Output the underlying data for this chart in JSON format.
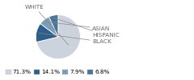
{
  "values": [
    71.3,
    14.1,
    7.9,
    6.8
  ],
  "colors": [
    "#cdd3dc",
    "#2c5f8a",
    "#7a9db8",
    "#4a7799"
  ],
  "legend_labels": [
    "71.3%",
    "14.1%",
    "7.9%",
    "6.8%"
  ],
  "legend_colors": [
    "#cdd3dc",
    "#2c5f8a",
    "#7a9db8",
    "#4a7799"
  ],
  "annotation_labels": [
    "WHITE",
    "ASIAN",
    "HISPANIC",
    "BLACK"
  ],
  "background_color": "#ffffff",
  "font_size": 5.2,
  "legend_font_size": 5.2
}
